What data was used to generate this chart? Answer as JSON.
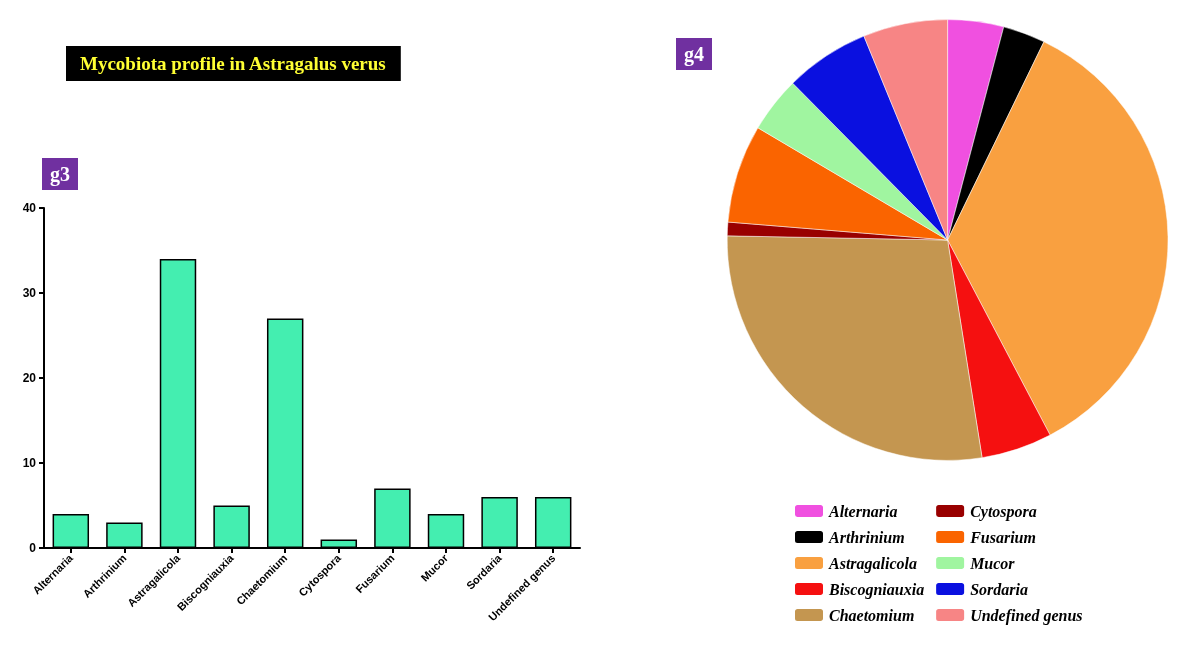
{
  "chart_data": [
    {
      "type": "bar",
      "title": "Mycobiota profile in Astragalus verus",
      "annotations": [
        "g3"
      ],
      "categories": [
        "Alternaria",
        "Arthrinium",
        "Astragalicola",
        "Biscogniauxia",
        "Chaetomium",
        "Cytospora",
        "Fusarium",
        "Mucor",
        "Sordaria",
        "Undefined genus"
      ],
      "values": [
        4,
        3,
        34,
        5,
        27,
        1,
        7,
        4,
        6,
        6
      ],
      "color": "#44eeb0",
      "ylim": [
        0,
        40
      ],
      "yticks": [
        0,
        10,
        20,
        30,
        40
      ],
      "grid": false,
      "legend": false
    },
    {
      "type": "pie",
      "annotations": [
        "g4"
      ],
      "categories": [
        "Alternaria",
        "Arthrinium",
        "Astragalicola",
        "Biscogniauxia",
        "Chaetomium",
        "Cytospora",
        "Fusarium",
        "Mucor",
        "Sordaria",
        "Undefined genus"
      ],
      "values": [
        4.1,
        3.1,
        35.1,
        5.2,
        27.8,
        1.0,
        7.2,
        4.1,
        6.2,
        6.2
      ],
      "colors": [
        "#f050e0",
        "#000000",
        "#f9a040",
        "#f51010",
        "#c49650",
        "#990000",
        "#fa6400",
        "#a0f5a0",
        "#0a10e0",
        "#f78585"
      ],
      "legend": "bottom"
    }
  ]
}
